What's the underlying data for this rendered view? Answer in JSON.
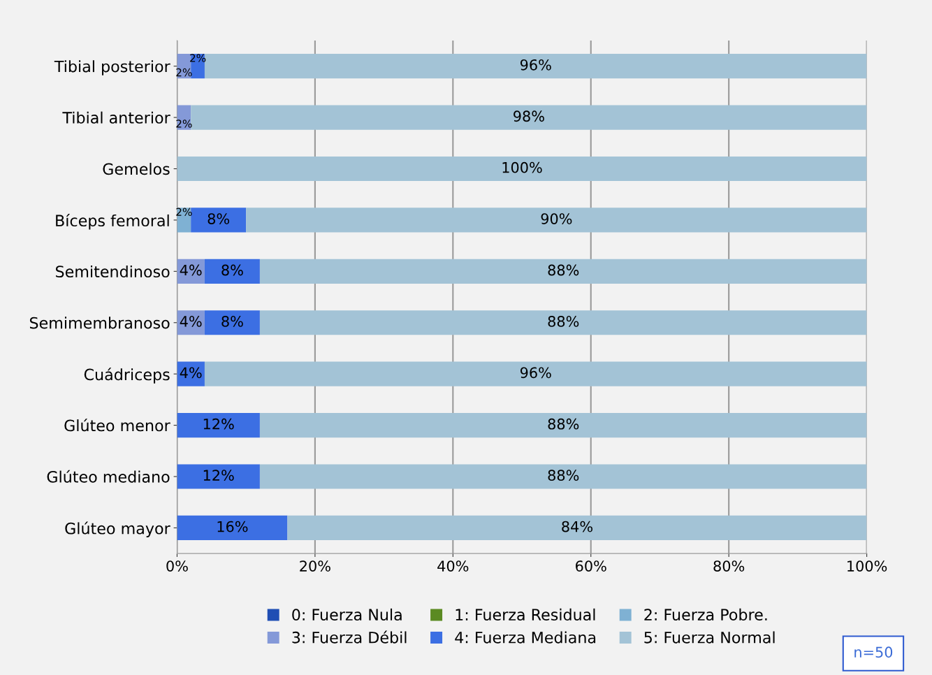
{
  "chart_data": {
    "type": "bar",
    "orientation": "horizontal",
    "stacked": true,
    "categories": [
      "Tibial posterior",
      "Tibial anterior",
      "Gemelos",
      "Bíceps femoral",
      "Semitendinoso",
      "Semimembranoso",
      "Cuádriceps",
      "Glúteo menor",
      "Glúteo mediano",
      "Glúteo mayor"
    ],
    "series": [
      {
        "name": "0: Fuerza Nula",
        "color": "#1f4eb4",
        "values": [
          null,
          null,
          null,
          null,
          null,
          null,
          null,
          null,
          null,
          null
        ],
        "value_labels": [
          null,
          null,
          null,
          null,
          null,
          null,
          null,
          null,
          null,
          null
        ]
      },
      {
        "name": "1: Fuerza Residual",
        "color": "#5b8a22",
        "values": [
          null,
          null,
          null,
          null,
          null,
          null,
          null,
          null,
          null,
          null
        ],
        "value_labels": [
          null,
          null,
          null,
          null,
          null,
          null,
          null,
          null,
          null,
          null
        ]
      },
      {
        "name": "2: Fuerza Pobre.",
        "color": "#7fb1d3",
        "values": [
          null,
          null,
          null,
          2,
          null,
          null,
          null,
          null,
          null,
          null
        ],
        "value_labels": [
          null,
          null,
          null,
          "2%",
          null,
          null,
          null,
          null,
          null,
          null
        ]
      },
      {
        "name": "3: Fuerza Débil",
        "color": "#8499d8",
        "values": [
          2,
          2,
          null,
          null,
          4,
          4,
          null,
          null,
          null,
          null
        ],
        "value_labels": [
          "2%",
          "2%",
          null,
          null,
          "4%",
          "4%",
          null,
          null,
          null,
          null
        ]
      },
      {
        "name": "4: Fuerza Mediana",
        "color": "#3c6fe3",
        "values": [
          2,
          null,
          null,
          8,
          8,
          8,
          4,
          12,
          12,
          16
        ],
        "value_labels": [
          "2%",
          null,
          null,
          "8%",
          "8%",
          "8%",
          "4%",
          "12%",
          "12%",
          "16%"
        ]
      },
      {
        "name": "5: Fuerza Normal",
        "color": "#a3c3d6",
        "values": [
          96,
          98,
          100,
          90,
          88,
          88,
          96,
          88,
          88,
          84
        ],
        "value_labels": [
          "96%",
          "98%",
          "100%",
          "90%",
          "88%",
          "88%",
          "96%",
          "88%",
          "88%",
          "84%"
        ]
      }
    ],
    "xlim": [
      0,
      100
    ],
    "xticks": [
      {
        "value": 0,
        "label": "0%"
      },
      {
        "value": 20,
        "label": "20%"
      },
      {
        "value": 40,
        "label": "40%"
      },
      {
        "value": 60,
        "label": "60%"
      },
      {
        "value": 80,
        "label": "80%"
      },
      {
        "value": 100,
        "label": "100%"
      }
    ],
    "grid": "x",
    "legend": "bottom",
    "annotations": [
      "n=50"
    ]
  }
}
